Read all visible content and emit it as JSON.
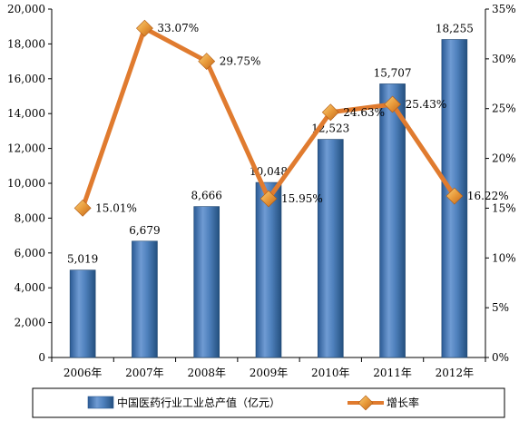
{
  "chart_data": {
    "type": "bar+line",
    "categories": [
      "2006年",
      "2007年",
      "2008年",
      "2009年",
      "2010年",
      "2011年",
      "2012年"
    ],
    "series": [
      {
        "name": "中国医药行业工业总产值（亿元）",
        "type": "bar",
        "axis": "left",
        "values": [
          5019,
          6679,
          8666,
          10048,
          12523,
          15707,
          18255
        ],
        "labels": [
          "5,019",
          "6,679",
          "8,666",
          "10,048",
          "12,523",
          "15,707",
          "18,255"
        ],
        "color": "#4f81bd"
      },
      {
        "name": "增长率",
        "type": "line",
        "axis": "right",
        "values": [
          15.01,
          33.07,
          29.75,
          15.95,
          24.63,
          25.43,
          16.22
        ],
        "labels": [
          "15.01%",
          "33.07%",
          "29.75%",
          "15.95%",
          "24.63%",
          "25.43%",
          "16.22%"
        ],
        "color": "#e07b2f"
      }
    ],
    "y_left": {
      "range": [
        0,
        20000
      ],
      "ticks": [
        "0",
        "2,000",
        "4,000",
        "6,000",
        "8,000",
        "10,000",
        "12,000",
        "14,000",
        "16,000",
        "18,000",
        "20,000"
      ]
    },
    "y_right": {
      "range": [
        0,
        35
      ],
      "ticks": [
        "0%",
        "5%",
        "10%",
        "15%",
        "20%",
        "25%",
        "30%",
        "35%"
      ]
    },
    "grid": false,
    "legend_position": "bottom"
  }
}
